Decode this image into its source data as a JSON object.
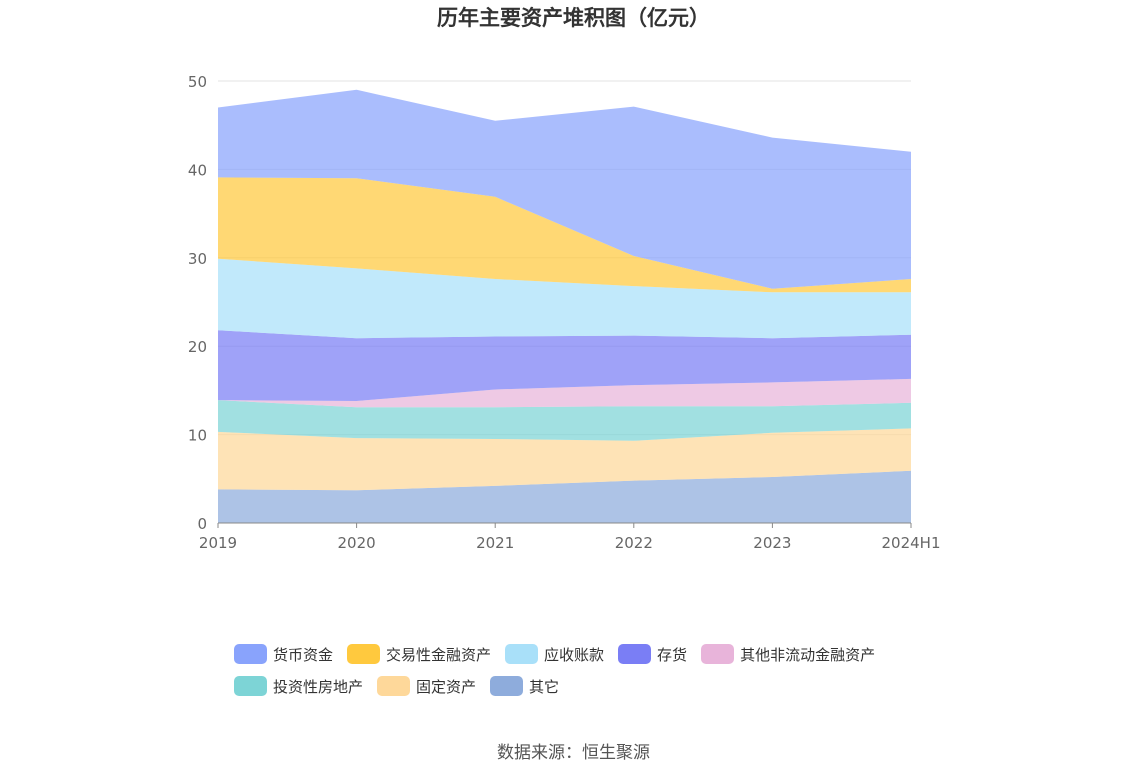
{
  "chart_data": {
    "type": "area",
    "stacked": true,
    "title": "历年主要资产堆积图（亿元）",
    "categories": [
      "2019",
      "2020",
      "2021",
      "2022",
      "2023",
      "2024H1"
    ],
    "ylim": [
      0,
      50
    ],
    "yticks": [
      "0",
      "10",
      "20",
      "30",
      "40",
      "50"
    ],
    "xlabel": "",
    "ylabel": "",
    "grid": true,
    "legend_position": "bottom",
    "series": [
      {
        "name": "其它",
        "color": "#8eacdc",
        "values": [
          3.8,
          3.7,
          4.2,
          4.8,
          5.2,
          5.9
        ]
      },
      {
        "name": "固定资产",
        "color": "#fed89a",
        "values": [
          6.5,
          5.9,
          5.3,
          4.5,
          5.0,
          4.8
        ]
      },
      {
        "name": "投资性房地产",
        "color": "#7dd4d6",
        "values": [
          3.6,
          3.5,
          3.6,
          3.9,
          3.0,
          2.9
        ]
      },
      {
        "name": "其他非流动金融资产",
        "color": "#e8b4da",
        "values": [
          0.0,
          0.7,
          2.0,
          2.4,
          2.7,
          2.7
        ]
      },
      {
        "name": "存货",
        "color": "#7a7ef5",
        "values": [
          7.9,
          7.1,
          6.0,
          5.6,
          5.0,
          5.0
        ]
      },
      {
        "name": "应收账款",
        "color": "#a9e0f9",
        "values": [
          8.1,
          7.9,
          6.5,
          5.6,
          5.2,
          4.8
        ]
      },
      {
        "name": "交易性金融资产",
        "color": "#ffc93e",
        "values": [
          9.2,
          10.2,
          9.3,
          3.4,
          0.4,
          1.5
        ]
      },
      {
        "name": "货币资金",
        "color": "#89a3fc",
        "values": [
          7.9,
          10.0,
          8.6,
          16.9,
          17.1,
          14.4
        ]
      }
    ]
  },
  "legend_rows": [
    [
      {
        "label": "货币资金",
        "color": "#89a3fc"
      },
      {
        "label": "交易性金融资产",
        "color": "#ffc93e"
      },
      {
        "label": "应收账款",
        "color": "#a9e0f9"
      },
      {
        "label": "存货",
        "color": "#7a7ef5"
      },
      {
        "label": "其他非流动金融资产",
        "color": "#e8b4da"
      }
    ],
    [
      {
        "label": "投资性房地产",
        "color": "#7dd4d6"
      },
      {
        "label": "固定资产",
        "color": "#fed89a"
      },
      {
        "label": "其它",
        "color": "#8eacdc"
      }
    ]
  ],
  "source": "数据来源：恒生聚源"
}
